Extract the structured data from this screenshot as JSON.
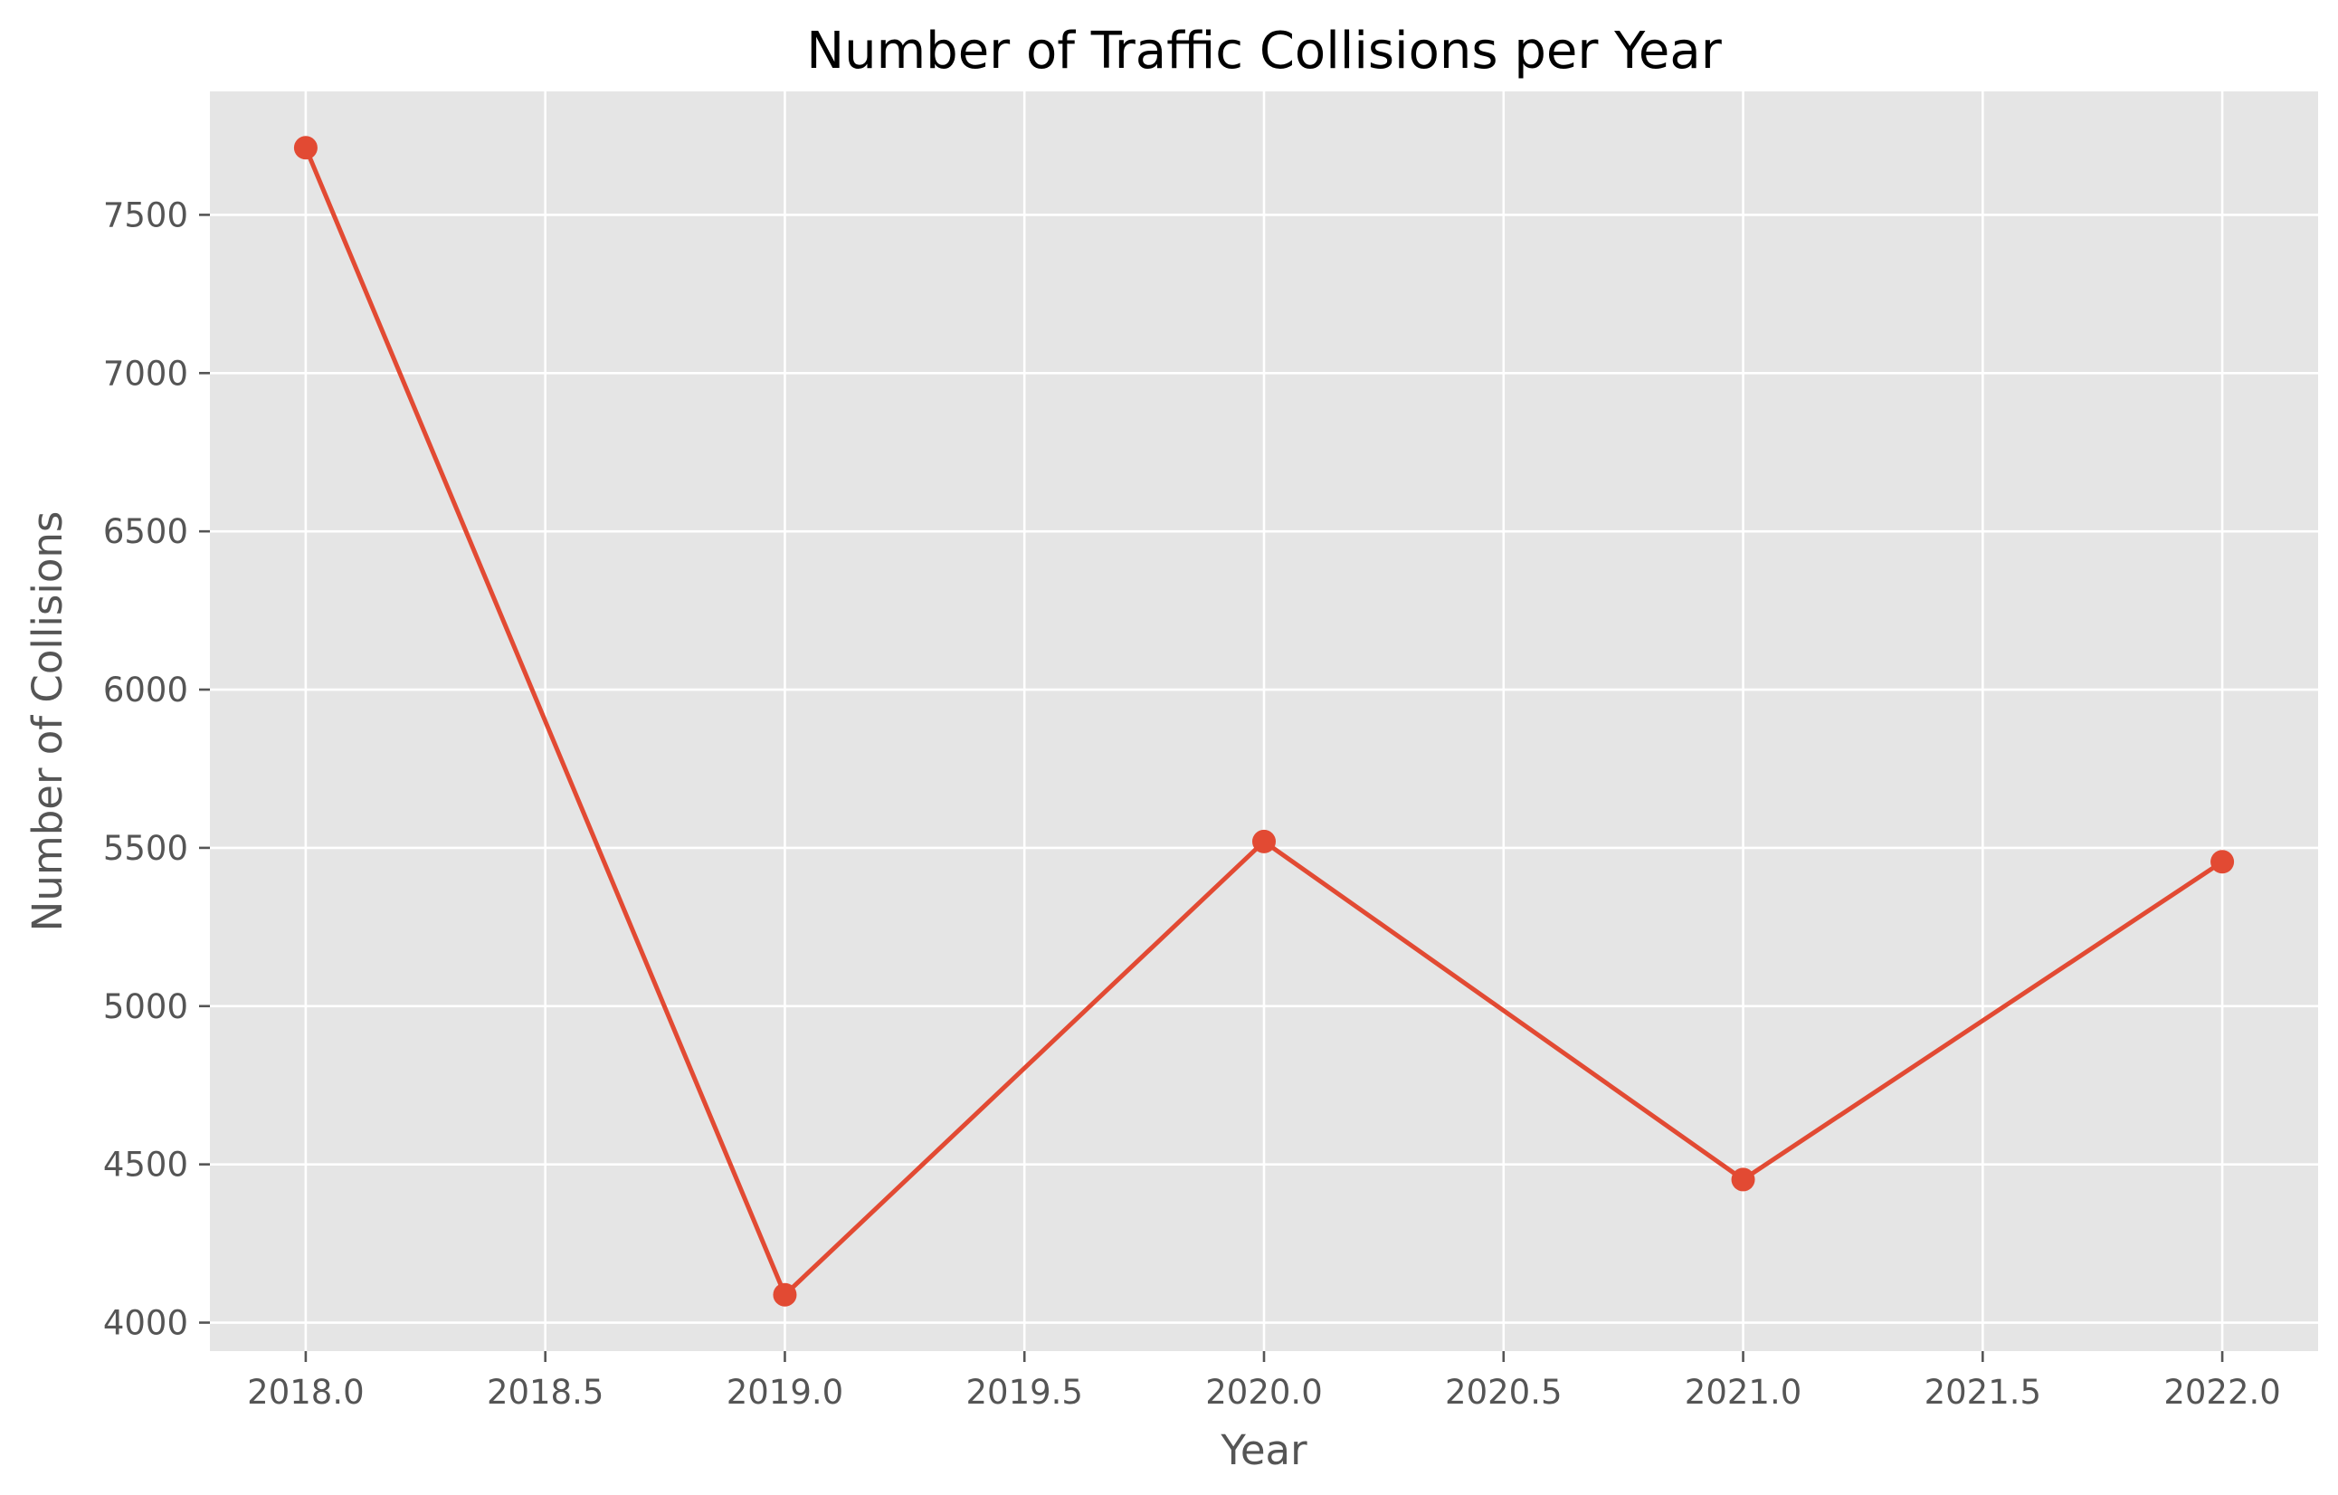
{
  "chart_data": {
    "type": "line",
    "title": "Number of Traffic Collisions per Year",
    "xlabel": "Year",
    "ylabel": "Number of Collisions",
    "x": [
      2018,
      2019,
      2020,
      2021,
      2022
    ],
    "series": [
      {
        "values": [
          7712,
          4088,
          5520,
          4452,
          5456
        ]
      }
    ],
    "xlim": [
      2017.8,
      2022.2
    ],
    "ylim": [
      3910,
      7890
    ],
    "xticks": [
      "2018.0",
      "2018.5",
      "2019.0",
      "2019.5",
      "2020.0",
      "2020.5",
      "2021.0",
      "2021.5",
      "2022.0"
    ],
    "yticks": [
      "4000",
      "4500",
      "5000",
      "5500",
      "6000",
      "6500",
      "7000",
      "7500"
    ],
    "grid": true,
    "line_color": "#E24A33",
    "plot_background": "#E5E5E5",
    "grid_color": "#FFFFFF",
    "markers": "circle"
  }
}
